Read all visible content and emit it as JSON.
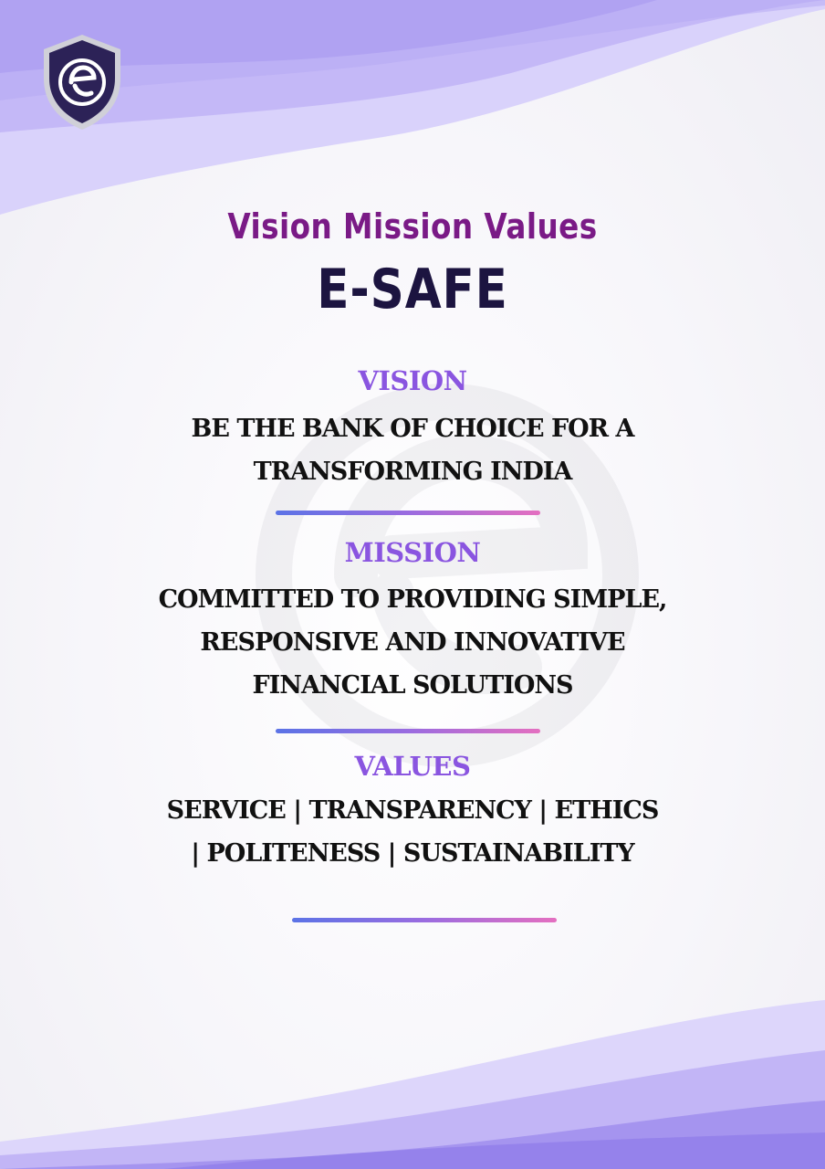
{
  "header": {
    "title": "Vision Mission Values",
    "brand": "E-SAFE",
    "logo_icon": "e-shield-logo-icon"
  },
  "sections": [
    {
      "heading": "VISION",
      "lines": [
        "BE THE BANK OF CHOICE FOR A",
        "TRANSFORMING INDIA"
      ]
    },
    {
      "heading": "MISSION",
      "lines": [
        "COMMITTED TO PROVIDING SIMPLE,",
        "RESPONSIVE AND INNOVATIVE",
        "FINANCIAL SOLUTIONS"
      ]
    },
    {
      "heading": "VALUES",
      "lines": [
        "SERVICE | TRANSPARENCY | ETHICS",
        "| POLITENESS | SUSTAINABILITY"
      ]
    }
  ],
  "colors": {
    "title": "#7a1a86",
    "brand": "#1c1440",
    "section_heading": "#8a55e0",
    "body_text": "#111111",
    "wave_primary": "#a99af0",
    "divider_start": "#5b73e6",
    "divider_end": "#e46fc0"
  }
}
